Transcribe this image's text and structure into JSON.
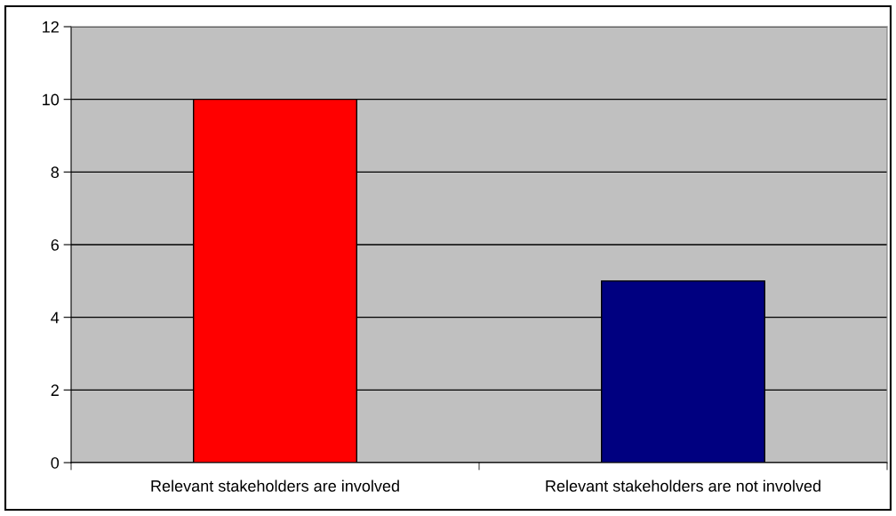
{
  "chart_data": {
    "type": "bar",
    "categories": [
      "Relevant stakeholders are involved",
      "Relevant stakeholders are not involved"
    ],
    "values": [
      10,
      5
    ],
    "colors": [
      "#ff0000",
      "#000080"
    ],
    "ylim": [
      0,
      12
    ],
    "yticks": [
      0,
      2,
      4,
      6,
      8,
      10,
      12
    ],
    "grid": "y"
  }
}
